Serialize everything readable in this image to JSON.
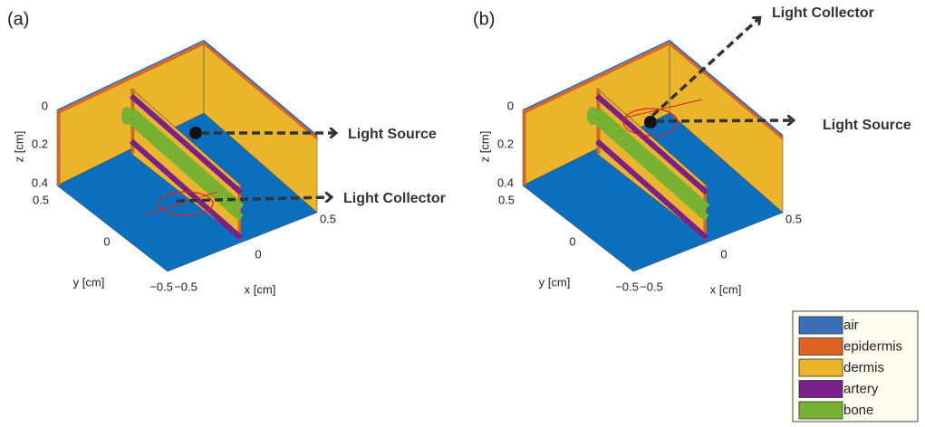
{
  "panels": [
    {
      "label": "(a)",
      "z_label": "z [cm]",
      "z_ticks": [
        "0",
        "0.2",
        "0.4"
      ],
      "y_label": "y [cm]",
      "y_ticks": [
        "0.5",
        "0",
        "−0.5"
      ],
      "x_label": "x [cm]",
      "x_ticks": [
        "−0.5",
        "0",
        "0.5"
      ],
      "annotations": [
        "Light Source",
        "Light Collector"
      ]
    },
    {
      "label": "(b)",
      "z_label": "z [cm]",
      "z_ticks": [
        "0",
        "0.2",
        "0.4"
      ],
      "y_label": "y [cm]",
      "y_ticks": [
        "0.5",
        "0",
        "−0.5"
      ],
      "x_label": "x [cm]",
      "x_ticks": [
        "−0.5",
        "0",
        "0.5"
      ],
      "annotations": [
        "Light Collector",
        "Light Source"
      ]
    }
  ],
  "legend": [
    {
      "label": "air",
      "color": "#3a6fb5"
    },
    {
      "label": "epidermis",
      "color": "#e0621f"
    },
    {
      "label": "dermis",
      "color": "#eab52a"
    },
    {
      "label": "artery",
      "color": "#7b1f8a"
    },
    {
      "label": "bone",
      "color": "#78b233"
    }
  ]
}
